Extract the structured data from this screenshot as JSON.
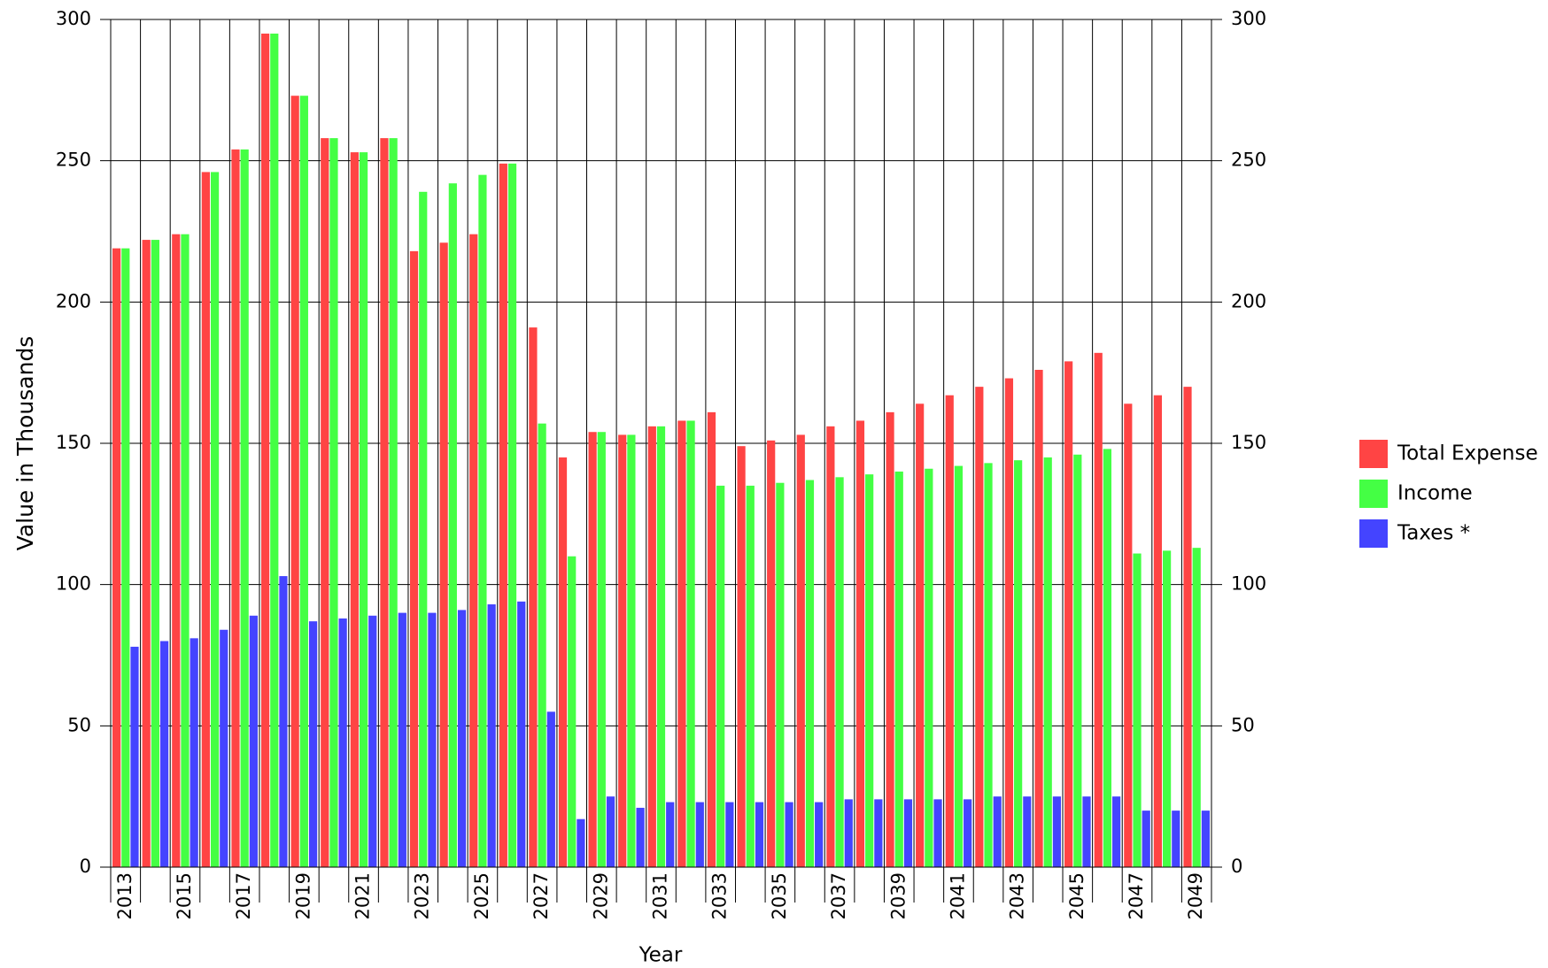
{
  "chart_data": {
    "type": "bar",
    "x_label": "Year",
    "y_label": "Value in Thousands",
    "categories": [
      "2013",
      null,
      "2015",
      null,
      "2017",
      null,
      "2019",
      null,
      "2021",
      null,
      "2023",
      null,
      "2025",
      null,
      "2027",
      null,
      "2029",
      null,
      "2031",
      null,
      "2033",
      null,
      "2035",
      null,
      "2037",
      null,
      "2039",
      null,
      "2041",
      null,
      "2043",
      null,
      "2045",
      null,
      "2047",
      null,
      "2049"
    ],
    "series": [
      {
        "name": "Total Expense",
        "color": "#ff4444",
        "values": [
          219,
          222,
          224,
          246,
          254,
          295,
          273,
          258,
          253,
          258,
          218,
          221,
          224,
          249,
          191,
          145,
          154,
          153,
          156,
          158,
          161,
          149,
          151,
          153,
          156,
          158,
          161,
          164,
          167,
          170,
          173,
          176,
          179,
          182,
          164,
          167,
          170
        ]
      },
      {
        "name": "Income",
        "color": "#44ff44",
        "values": [
          219,
          222,
          224,
          246,
          254,
          295,
          273,
          258,
          253,
          258,
          239,
          242,
          245,
          249,
          157,
          110,
          154,
          153,
          156,
          158,
          135,
          135,
          136,
          137,
          138,
          139,
          140,
          141,
          142,
          143,
          144,
          145,
          146,
          148,
          111,
          112,
          113
        ]
      },
      {
        "name": "Taxes *",
        "color": "#4444ff",
        "values": [
          78,
          80,
          81,
          84,
          89,
          103,
          87,
          88,
          89,
          90,
          90,
          91,
          93,
          94,
          55,
          17,
          25,
          21,
          23,
          23,
          23,
          23,
          23,
          23,
          24,
          24,
          24,
          24,
          24,
          25,
          25,
          25,
          25,
          25,
          20,
          20,
          20
        ]
      }
    ],
    "ylim": [
      0,
      300
    ],
    "yticks": [
      0,
      50,
      100,
      150,
      200,
      250,
      300
    ],
    "y2lim": [
      0,
      300
    ],
    "y2ticks": [
      0,
      50,
      100,
      150,
      200,
      250,
      300
    ],
    "grid": true,
    "legend": "right"
  }
}
